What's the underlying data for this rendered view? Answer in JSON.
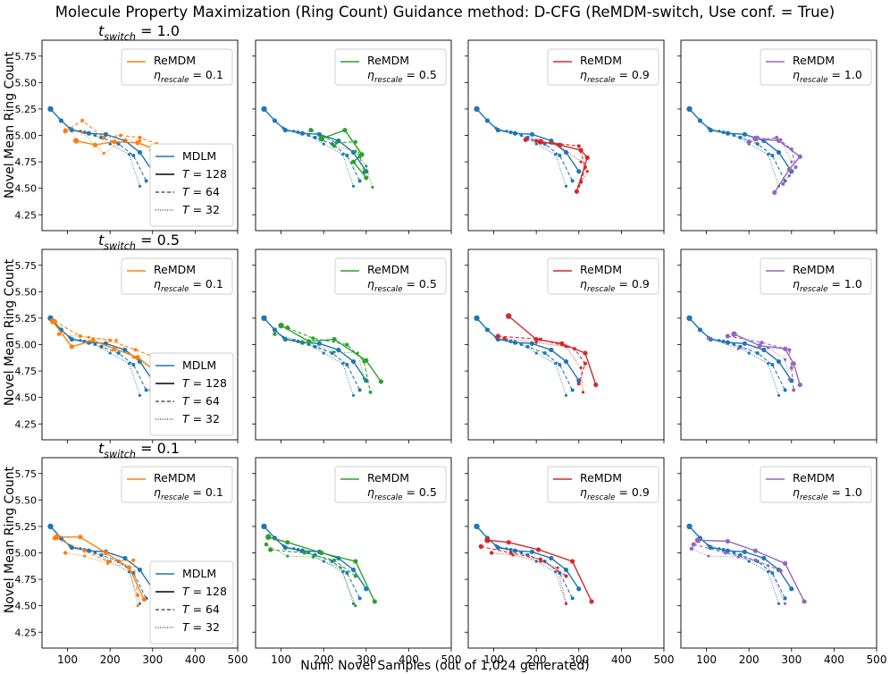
{
  "title": "Molecule Property Maximization (Ring Count) Guidance method: D-CFG (ReMDM-switch, Use conf. = True)",
  "xlabel": "Num. Novel Samples (out of 1,024 generated)",
  "ylabel": "Novel Mean Ring Count",
  "row_labels": [
    "t_switch = 1.0",
    "t_switch = 0.5",
    "t_switch = 0.1"
  ],
  "colors": {
    "mdlm": "#1f77b4",
    "remdm": [
      "#ff7f0e",
      "#2ca02c",
      "#d62728",
      "#9467bd"
    ],
    "legend_black": "#000000"
  },
  "chart_data": {
    "type": "line",
    "grid": false,
    "legend_placement": "upper right (ReMDM); lower right (MDLM / T) in first column",
    "xlim": [
      40,
      500
    ],
    "ylim": [
      4.1,
      5.9
    ],
    "xticks": [
      100,
      200,
      300,
      400,
      500
    ],
    "yticks": [
      4.25,
      4.5,
      4.75,
      5.0,
      5.25,
      5.5,
      5.75
    ],
    "xtick_labels": [
      "100",
      "200",
      "300",
      "400",
      "500"
    ],
    "ytick_labels": [
      "4.25",
      "4.50",
      "4.75",
      "5.00",
      "5.25",
      "5.50",
      "5.75"
    ],
    "legend_remdm_label": "ReMDM",
    "eta_values": [
      "0.1",
      "0.5",
      "0.9",
      "1.0"
    ],
    "style_legend": [
      "MDLM",
      "T = 128",
      "T = 64",
      "T = 32"
    ],
    "mdlm": {
      "T128": [
        [
          60,
          5.25
        ],
        [
          85,
          5.14
        ],
        [
          110,
          5.05
        ],
        [
          150,
          5.02
        ],
        [
          190,
          5.01
        ],
        [
          235,
          4.95
        ],
        [
          270,
          4.84
        ],
        [
          300,
          4.66
        ]
      ],
      "T64": [
        [
          60,
          5.25
        ],
        [
          85,
          5.14
        ],
        [
          110,
          5.05
        ],
        [
          140,
          5.03
        ],
        [
          180,
          4.98
        ],
        [
          220,
          4.92
        ],
        [
          255,
          4.81
        ],
        [
          285,
          4.57
        ]
      ],
      "T32": [
        [
          60,
          5.25
        ],
        [
          85,
          5.14
        ],
        [
          105,
          5.07
        ],
        [
          130,
          5.04
        ],
        [
          165,
          5.0
        ],
        [
          200,
          4.92
        ],
        [
          245,
          4.82
        ],
        [
          270,
          4.52
        ]
      ]
    },
    "remdm": [
      [
        {
          "T128": [
            [
              120,
              4.95
            ],
            [
              165,
              4.91
            ],
            [
              210,
              4.94
            ],
            [
              265,
              4.93
            ],
            [
              300,
              4.88
            ]
          ],
          "T64": [
            [
              95,
              5.04
            ],
            [
              135,
              5.14
            ],
            [
              185,
              4.98
            ],
            [
              225,
              5.0
            ],
            [
              270,
              4.98
            ],
            [
              310,
              4.92
            ]
          ],
          "T32": [
            [
              95,
              5.05
            ],
            [
              135,
              5.03
            ],
            [
              185,
              4.83
            ],
            [
              235,
              4.96
            ],
            [
              270,
              4.95
            ],
            [
              295,
              4.86
            ]
          ]
        },
        {
          "T128": [
            [
              195,
              4.97
            ],
            [
              250,
              5.05
            ],
            [
              290,
              4.82
            ],
            [
              270,
              4.75
            ],
            [
              300,
              4.6
            ]
          ],
          "T64": [
            [
              170,
              5.05
            ],
            [
              230,
              4.93
            ],
            [
              275,
              4.94
            ],
            [
              285,
              4.8
            ],
            [
              295,
              4.65
            ]
          ],
          "T32": [
            [
              225,
              4.9
            ],
            [
              275,
              4.85
            ],
            [
              300,
              4.71
            ],
            [
              315,
              4.51
            ]
          ]
        },
        {
          "T128": [
            [
              210,
              4.94
            ],
            [
              255,
              4.91
            ],
            [
              305,
              4.86
            ],
            [
              320,
              4.79
            ],
            [
              295,
              4.47
            ]
          ],
          "T64": [
            [
              175,
              4.96
            ],
            [
              235,
              4.93
            ],
            [
              300,
              4.9
            ],
            [
              315,
              4.7
            ],
            [
              305,
              4.56
            ]
          ],
          "T32": [
            [
              200,
              4.95
            ],
            [
              255,
              4.9
            ],
            [
              305,
              4.75
            ],
            [
              320,
              4.66
            ],
            [
              300,
              4.52
            ]
          ]
        },
        {
          "T128": [
            [
              215,
              4.97
            ],
            [
              270,
              4.95
            ],
            [
              320,
              4.8
            ],
            [
              295,
              4.68
            ],
            [
              260,
              4.46
            ]
          ],
          "T64": [
            [
              200,
              4.94
            ],
            [
              265,
              4.98
            ],
            [
              300,
              4.87
            ],
            [
              310,
              4.7
            ],
            [
              280,
              4.54
            ]
          ],
          "T32": [
            [
              220,
              4.98
            ],
            [
              275,
              4.96
            ],
            [
              300,
              4.75
            ],
            [
              310,
              4.7
            ],
            [
              295,
              4.62
            ]
          ]
        }
      ],
      [
        {
          "T128": [
            [
              65,
              5.22
            ],
            [
              110,
              4.98
            ],
            [
              160,
              5.04
            ],
            [
              210,
              4.96
            ],
            [
              265,
              4.88
            ],
            [
              300,
              4.77
            ]
          ],
          "T64": [
            [
              70,
              5.22
            ],
            [
              130,
              5.08
            ],
            [
              200,
              5.04
            ],
            [
              260,
              4.95
            ],
            [
              300,
              4.89
            ],
            [
              295,
              4.57
            ]
          ],
          "T32": [
            [
              80,
              5.1
            ],
            [
              150,
              5.07
            ],
            [
              215,
              5.04
            ],
            [
              255,
              4.88
            ],
            [
              300,
              4.77
            ],
            [
              310,
              4.68
            ]
          ]
        },
        {
          "T128": [
            [
              100,
              5.18
            ],
            [
              165,
              5.03
            ],
            [
              225,
              5.05
            ],
            [
              300,
              4.85
            ],
            [
              335,
              4.65
            ]
          ],
          "T64": [
            [
              115,
              5.16
            ],
            [
              175,
              5.06
            ],
            [
              255,
              5.0
            ],
            [
              295,
              4.84
            ],
            [
              310,
              4.55
            ]
          ],
          "T32": [
            [
              85,
              5.1
            ],
            [
              150,
              5.03
            ],
            [
              225,
              4.93
            ],
            [
              280,
              4.92
            ],
            [
              295,
              4.68
            ]
          ]
        },
        {
          "T128": [
            [
              135,
              5.27
            ],
            [
              200,
              5.05
            ],
            [
              260,
              5.01
            ],
            [
              315,
              4.92
            ],
            [
              340,
              4.62
            ]
          ],
          "T64": [
            [
              110,
              5.08
            ],
            [
              210,
              5.05
            ],
            [
              290,
              4.96
            ],
            [
              315,
              4.82
            ],
            [
              300,
              4.63
            ]
          ],
          "T32": [
            [
              125,
              5.06
            ],
            [
              200,
              5.02
            ],
            [
              270,
              4.98
            ],
            [
              305,
              4.78
            ],
            [
              310,
              4.55
            ]
          ]
        },
        {
          "T128": [
            [
              165,
              5.1
            ],
            [
              225,
              4.99
            ],
            [
              285,
              4.96
            ],
            [
              305,
              4.82
            ],
            [
              320,
              4.62
            ]
          ],
          "T64": [
            [
              150,
              5.08
            ],
            [
              230,
              5.02
            ],
            [
              295,
              4.95
            ],
            [
              300,
              4.78
            ],
            [
              305,
              4.57
            ]
          ],
          "T32": [
            [
              105,
              5.06
            ],
            [
              175,
              4.96
            ],
            [
              245,
              4.97
            ],
            [
              285,
              4.86
            ],
            [
              295,
              4.67
            ]
          ]
        }
      ],
      [
        {
          "T128": [
            [
              75,
              5.15
            ],
            [
              130,
              5.15
            ],
            [
              190,
              5.0
            ],
            [
              245,
              4.86
            ],
            [
              280,
              4.56
            ]
          ],
          "T64": [
            [
              70,
              5.14
            ],
            [
              140,
              5.02
            ],
            [
              195,
              4.92
            ],
            [
              255,
              4.93
            ],
            [
              265,
              4.6
            ]
          ],
          "T32": [
            [
              95,
              5.0
            ],
            [
              140,
              4.97
            ],
            [
              195,
              4.9
            ],
            [
              245,
              4.87
            ],
            [
              265,
              4.5
            ]
          ]
        },
        {
          "T128": [
            [
              70,
              5.15
            ],
            [
              115,
              5.1
            ],
            [
              195,
              5.0
            ],
            [
              275,
              4.92
            ],
            [
              320,
              4.54
            ]
          ],
          "T64": [
            [
              75,
              5.03
            ],
            [
              155,
              5.0
            ],
            [
              225,
              4.93
            ],
            [
              275,
              4.78
            ]
          ],
          "T32": [
            [
              65,
              5.08
            ],
            [
              115,
              4.97
            ],
            [
              175,
              4.96
            ],
            [
              240,
              4.86
            ],
            [
              275,
              4.5
            ]
          ]
        },
        {
          "T128": [
            [
              85,
              5.12
            ],
            [
              135,
              5.1
            ],
            [
              205,
              5.03
            ],
            [
              285,
              4.92
            ],
            [
              330,
              4.54
            ]
          ],
          "T64": [
            [
              70,
              5.06
            ],
            [
              140,
              5.0
            ],
            [
              210,
              4.94
            ],
            [
              270,
              4.78
            ]
          ],
          "T32": [
            [
              95,
              5.0
            ],
            [
              145,
              4.98
            ],
            [
              210,
              4.92
            ],
            [
              250,
              4.86
            ],
            [
              270,
              4.52
            ]
          ]
        },
        {
          "T128": [
            [
              80,
              5.12
            ],
            [
              150,
              5.11
            ],
            [
              215,
              5.02
            ],
            [
              285,
              4.9
            ],
            [
              330,
              4.54
            ]
          ],
          "T64": [
            [
              70,
              5.08
            ],
            [
              145,
              5.0
            ],
            [
              215,
              4.93
            ],
            [
              275,
              4.83
            ]
          ],
          "T32": [
            [
              65,
              5.04
            ],
            [
              105,
              4.97
            ],
            [
              175,
              4.96
            ],
            [
              245,
              4.88
            ],
            [
              285,
              4.52
            ]
          ]
        }
      ]
    ]
  }
}
